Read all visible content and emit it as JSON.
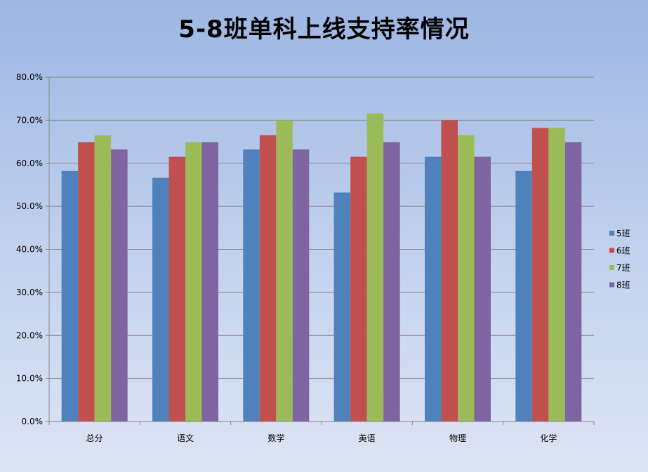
{
  "chart_data": {
    "type": "bar",
    "title": "5-8班单科上线支持率情况",
    "categories": [
      "总分",
      "语文",
      "数学",
      "英语",
      "物理",
      "化学"
    ],
    "series": [
      {
        "name": "5班",
        "color": "#4f81bd",
        "values": [
          0.582,
          0.566,
          0.632,
          0.532,
          0.615,
          0.582
        ]
      },
      {
        "name": "6班",
        "color": "#c0504d",
        "values": [
          0.649,
          0.615,
          0.665,
          0.615,
          0.7,
          0.682
        ]
      },
      {
        "name": "7班",
        "color": "#9bbb59",
        "values": [
          0.665,
          0.649,
          0.7,
          0.716,
          0.665,
          0.682
        ]
      },
      {
        "name": "8班",
        "color": "#8064a2",
        "values": [
          0.632,
          0.649,
          0.632,
          0.649,
          0.615,
          0.649
        ]
      }
    ],
    "ylim": [
      0,
      0.8
    ],
    "yticks": [
      "0.0%",
      "10.0%",
      "20.0%",
      "30.0%",
      "40.0%",
      "50.0%",
      "60.0%",
      "70.0%",
      "80.0%"
    ],
    "grid": true,
    "legend_position": "right"
  }
}
